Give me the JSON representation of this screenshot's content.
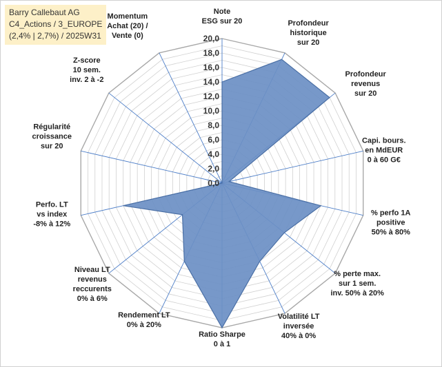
{
  "title": {
    "lines": [
      "Barry Callebaut AG",
      "C4_Actions / 3_EUROPE",
      "(2,4% | 2,7%) / 2025W31"
    ]
  },
  "chart_data": {
    "type": "radar",
    "rmin": 0,
    "rmax": 20,
    "rings": 20,
    "tick_labels": [
      "0,0",
      "2,0",
      "4,0",
      "6,0",
      "8,0",
      "10,0",
      "12,0",
      "14,0",
      "16,0",
      "18,0",
      "20,0"
    ],
    "axes": [
      {
        "label_lines": [
          "Note",
          "ESG sur 20"
        ],
        "value": 14
      },
      {
        "label_lines": [
          "Profondeur",
          "historique",
          "sur 20"
        ],
        "value": 19
      },
      {
        "label_lines": [
          "Profondeur",
          "revenus",
          "sur 20"
        ],
        "value": 19
      },
      {
        "label_lines": [
          "Capi. bours.",
          "en MdEUR",
          "0 à 60 G€"
        ],
        "value": 1
      },
      {
        "label_lines": [
          "% perfo 1A",
          "positive",
          "50% à 80%"
        ],
        "value": 14
      },
      {
        "label_lines": [
          "% perte max.",
          "sur 1 sem.",
          "inv. 50% à 20%"
        ],
        "value": 11
      },
      {
        "label_lines": [
          "Volatilité LT",
          "inversée",
          "40% à 0%"
        ],
        "value": 12
      },
      {
        "label_lines": [
          "Ratio Sharpe",
          "0 à 1"
        ],
        "value": 20
      },
      {
        "label_lines": [
          "Rendement LT",
          "0% à 20%"
        ],
        "value": 12
      },
      {
        "label_lines": [
          "Niveau LT",
          "revenus",
          "reccurents",
          "0% à 6%"
        ],
        "value": 7
      },
      {
        "label_lines": [
          "Perfo. LT",
          "vs index",
          "-8% à 12%"
        ],
        "value": 14
      },
      {
        "label_lines": [
          "Régularité",
          "croissance",
          "sur 20"
        ],
        "value": 0
      },
      {
        "label_lines": [
          "Z-score",
          "10 sem.",
          "inv. 2 à -2"
        ],
        "value": 0
      },
      {
        "label_lines": [
          "Momentum",
          "Achat (20) /",
          "Vente (0)"
        ],
        "value": 0
      }
    ],
    "colors": {
      "fill": "#6b8fc4",
      "stroke": "#4a6fa5",
      "spoke": "#4a7cc7",
      "ring": "#d0d0d0",
      "outer": "#a8a8a8"
    }
  }
}
